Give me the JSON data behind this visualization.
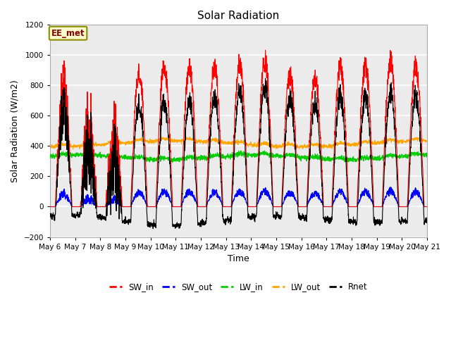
{
  "title": "Solar Radiation",
  "xlabel": "Time",
  "ylabel": "Solar Radiation (W/m2)",
  "ylim": [
    -200,
    1200
  ],
  "yticks": [
    -200,
    0,
    200,
    400,
    600,
    800,
    1000,
    1200
  ],
  "start_day": 6,
  "end_day": 21,
  "n_days": 15,
  "colors": {
    "SW_in": "#FF0000",
    "SW_out": "#0000FF",
    "LW_in": "#00CC00",
    "LW_out": "#FFA500",
    "Rnet": "#000000"
  },
  "annotation_text": "EE_met",
  "annotation_bbox": {
    "facecolor": "#FFFFCC",
    "edgecolor": "#8B8B00",
    "linewidth": 1.5
  },
  "background_color": "#FFFFFF",
  "plot_bg_color": "#EBEBEB",
  "grid_color": "#FFFFFF",
  "linewidth": 0.8,
  "legend_ncol": 5
}
